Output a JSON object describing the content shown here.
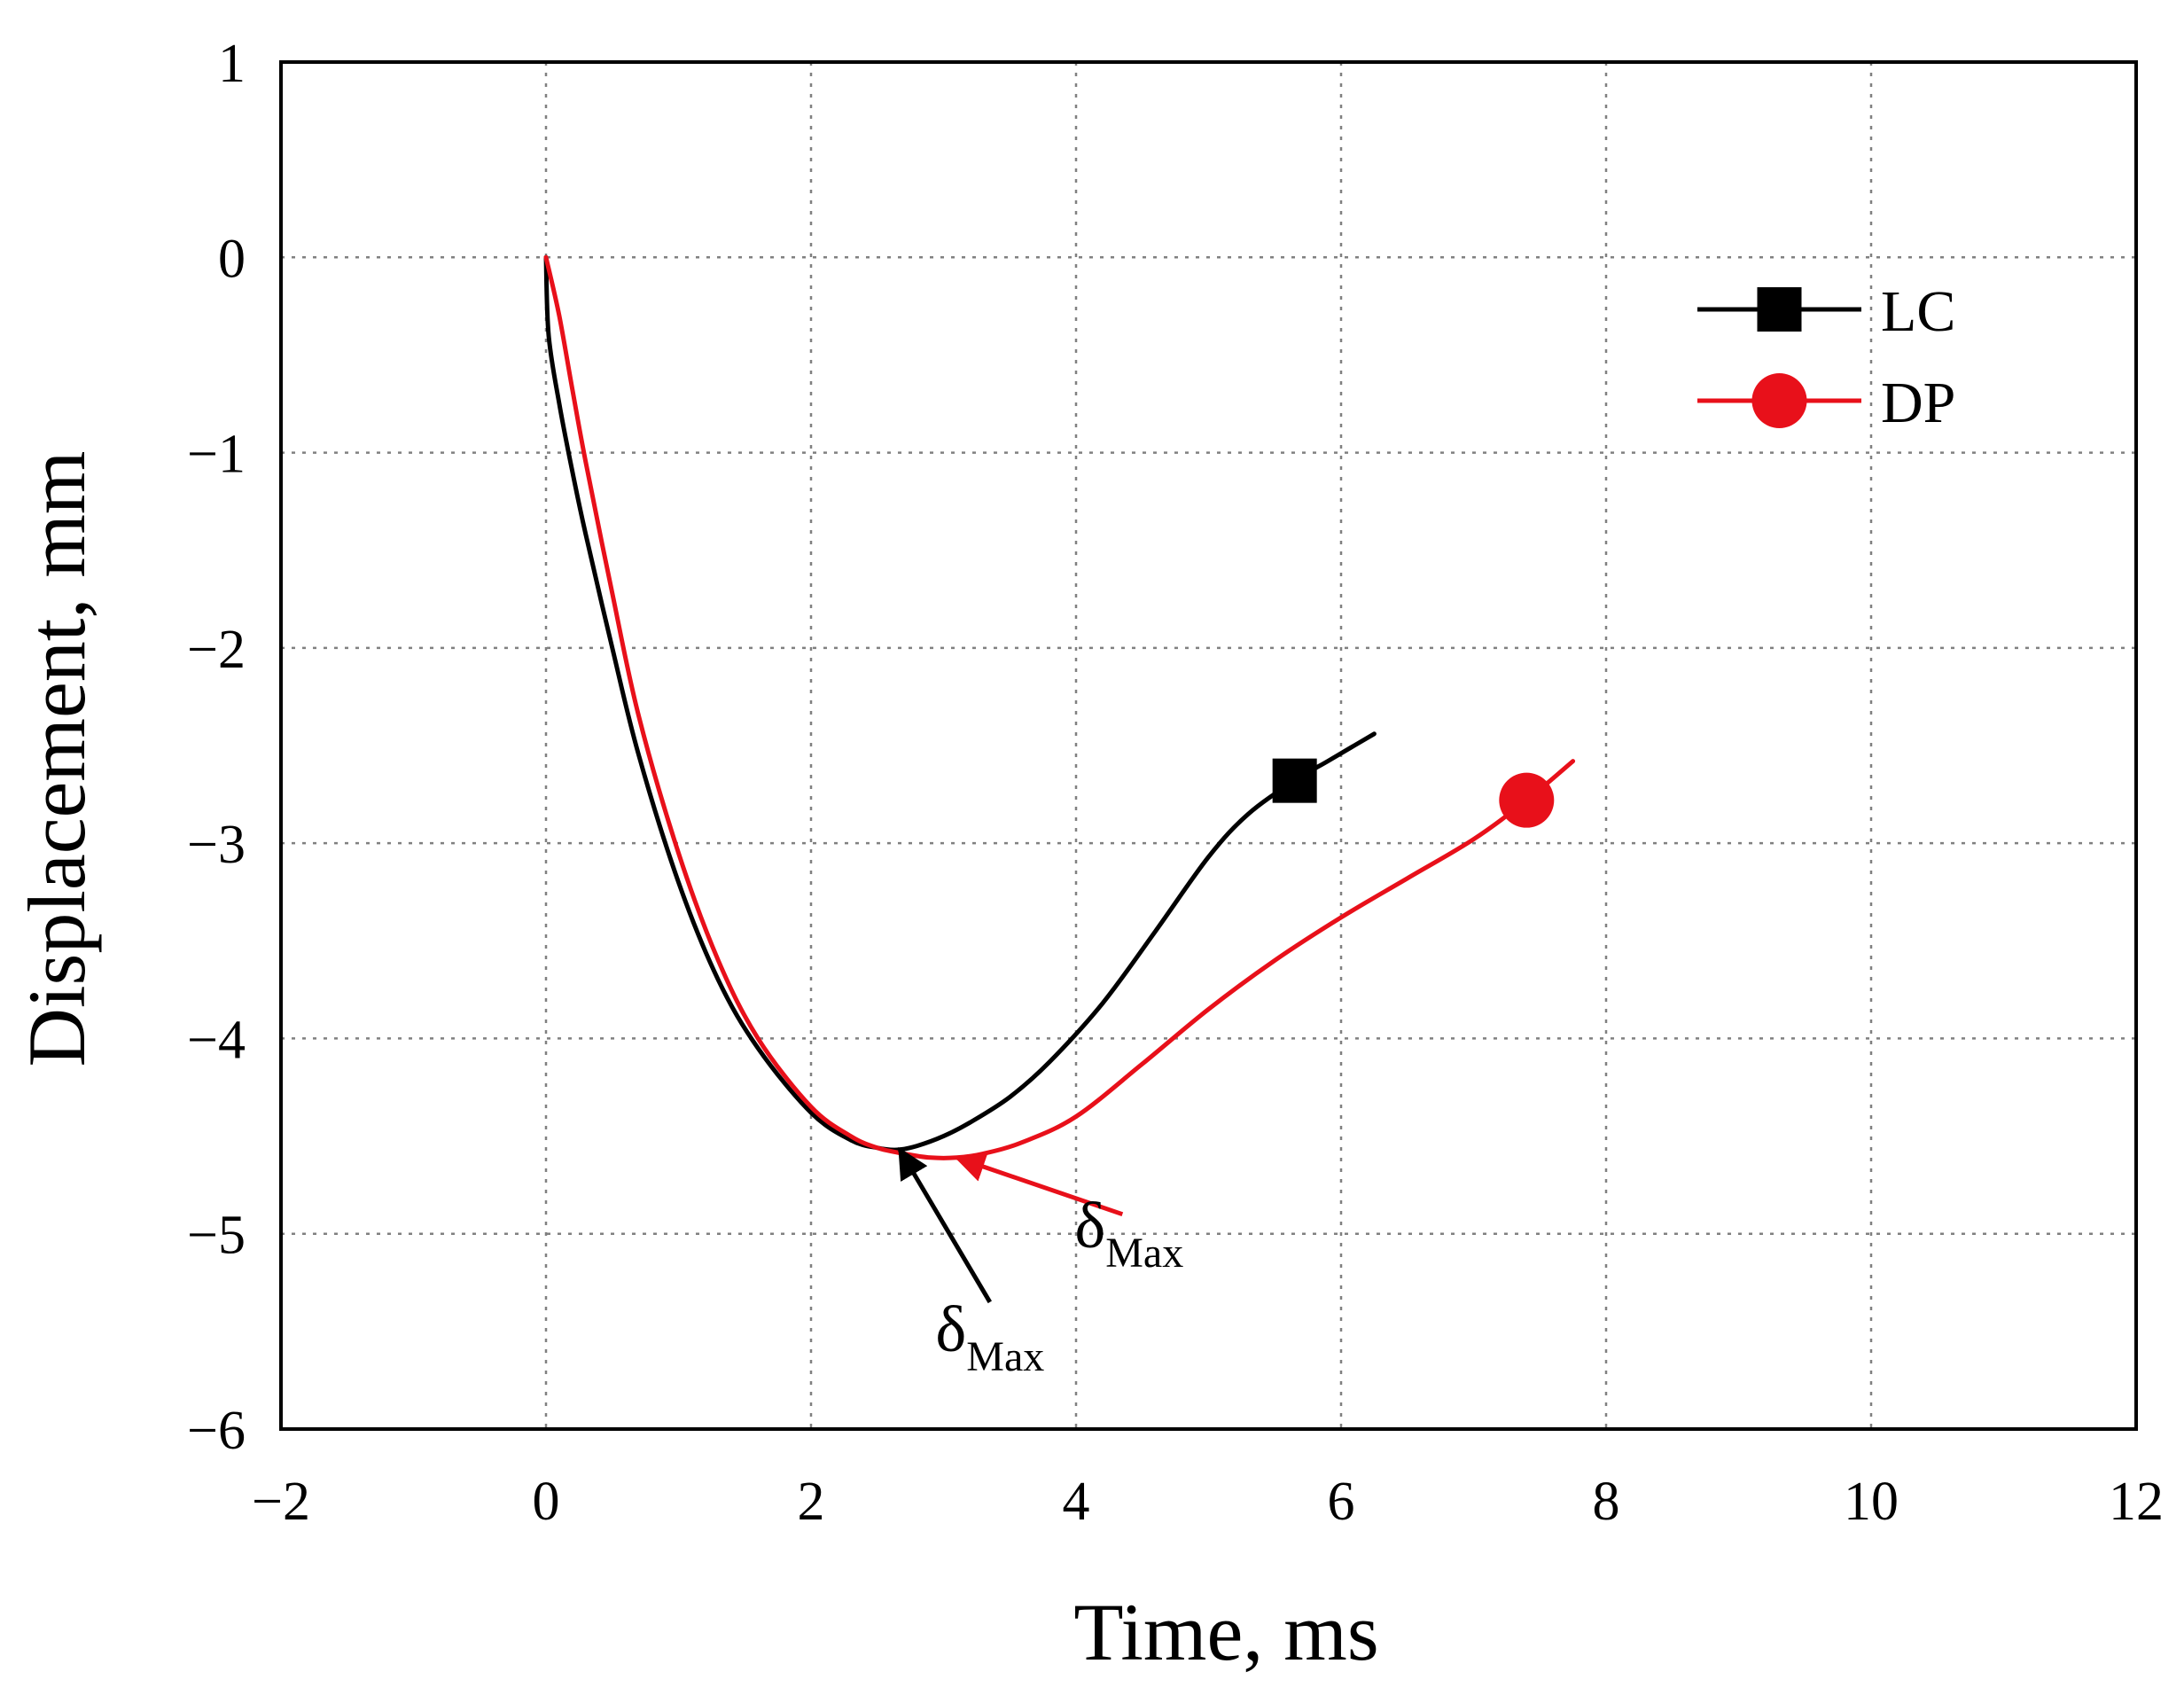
{
  "chart_data": {
    "type": "line",
    "title": "",
    "xlabel": "Time, ms",
    "ylabel": "Displacement, mm",
    "xlim": [
      -2,
      12
    ],
    "ylim": [
      -6,
      1
    ],
    "xticks": [
      -2,
      0,
      2,
      4,
      6,
      8,
      10,
      12
    ],
    "yticks": [
      1,
      0,
      -1,
      -2,
      -3,
      -4,
      -5,
      -6
    ],
    "xtick_labels": [
      "−2",
      "0",
      "2",
      "4",
      "6",
      "8",
      "10",
      "12"
    ],
    "ytick_labels": [
      "1",
      "0",
      "−1",
      "−2",
      "−3",
      "−4",
      "−5",
      "−6"
    ],
    "grid": true,
    "legend_position": "top-right",
    "series": [
      {
        "name": "LC",
        "color": "#000000",
        "marker": "square",
        "x": [
          0.0,
          0.02,
          0.1,
          0.2,
          0.3,
          0.5,
          0.7,
          1.0,
          1.3,
          1.6,
          2.0,
          2.3,
          2.5,
          2.65,
          2.8,
          3.0,
          3.2,
          3.5,
          3.8,
          4.2,
          4.6,
          5.0,
          5.3,
          5.65,
          5.9,
          6.1,
          6.25
        ],
        "y": [
          0.0,
          -0.4,
          -0.75,
          -1.1,
          -1.42,
          -2.0,
          -2.55,
          -3.2,
          -3.7,
          -4.05,
          -4.38,
          -4.52,
          -4.56,
          -4.57,
          -4.55,
          -4.5,
          -4.43,
          -4.3,
          -4.12,
          -3.82,
          -3.45,
          -3.07,
          -2.85,
          -2.68,
          -2.58,
          -2.5,
          -2.44
        ],
        "marker_points": [
          [
            5.65,
            -2.68
          ]
        ]
      },
      {
        "name": "DP",
        "color": "#e8101a",
        "marker": "circle",
        "x": [
          0.0,
          0.1,
          0.2,
          0.3,
          0.5,
          0.7,
          1.0,
          1.3,
          1.6,
          2.0,
          2.3,
          2.5,
          2.7,
          2.9,
          3.1,
          3.3,
          3.6,
          4.0,
          4.5,
          5.0,
          5.5,
          6.0,
          6.5,
          7.0,
          7.4,
          7.75
        ],
        "y": [
          0.0,
          -0.3,
          -0.68,
          -1.05,
          -1.72,
          -2.35,
          -3.05,
          -3.6,
          -4.0,
          -4.35,
          -4.5,
          -4.56,
          -4.59,
          -4.61,
          -4.61,
          -4.59,
          -4.53,
          -4.4,
          -4.13,
          -3.85,
          -3.6,
          -3.38,
          -3.18,
          -2.98,
          -2.78,
          -2.58
        ],
        "marker_points": [
          [
            7.4,
            -2.78
          ]
        ]
      }
    ],
    "annotations": [
      {
        "name": "lc-delta-max",
        "text_main": "δ",
        "text_sub": "Max",
        "color": "#000000",
        "point": [
          2.67,
          -4.57
        ],
        "text_at": [
          3.35,
          -5.6
        ],
        "arrow_from": [
          3.35,
          -5.35
        ]
      },
      {
        "name": "dp-delta-max",
        "text_main": "δ",
        "text_sub": "Max",
        "color": "#e8101a",
        "point": [
          3.1,
          -4.61
        ],
        "text_at": [
          4.4,
          -5.07
        ],
        "arrow_from": [
          4.35,
          -4.9
        ]
      }
    ]
  }
}
